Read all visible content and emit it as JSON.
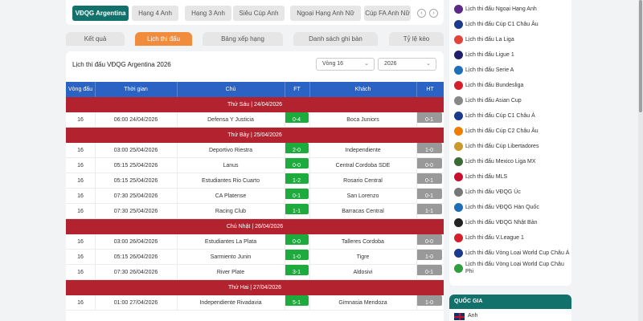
{
  "leagues": {
    "items": [
      "VĐQG Argentina",
      "Hạng 4 Anh",
      "Hạng 3 Anh",
      "Siêu Cúp Anh",
      "Ngoại Hạng Anh Nữ",
      "Cúp FA Anh Nữ"
    ],
    "prev": "‹",
    "next": "›"
  },
  "sections": [
    "Kết quả",
    "Lịch thi đấu",
    "Bảng xếp hạng",
    "Danh sách ghi bàn",
    "Tỷ lệ kèo"
  ],
  "schedule": {
    "title": "Lịch thi đấu VĐQG Argentina 2026",
    "round_select": "Vòng 16",
    "year_select": "2026",
    "headers": [
      "Vòng đấu",
      "Thời gian",
      "Chủ",
      "FT",
      "Khách",
      "HT"
    ],
    "groups": [
      {
        "date": "Thứ Sáu | 24/04/2026",
        "matches": [
          {
            "round": "16",
            "time": "06:00 24/04/2026",
            "home": "Defensa Y Justicia",
            "ft": "0-4",
            "away": "Boca Juniors",
            "ht": "0-1"
          }
        ]
      },
      {
        "date": "Thứ Bảy | 25/04/2026",
        "matches": [
          {
            "round": "16",
            "time": "03:00 25/04/2026",
            "home": "Deportivo Riestra",
            "ft": "2-0",
            "away": "Independiente",
            "ht": "1-0"
          },
          {
            "round": "16",
            "time": "05:15 25/04/2026",
            "home": "Lanus",
            "ft": "0-0",
            "away": "Central Cordoba SDE",
            "ht": "0-0"
          },
          {
            "round": "16",
            "time": "05:15 25/04/2026",
            "home": "Estudiantes Rio Cuarto",
            "ft": "1-2",
            "away": "Rosario Central",
            "ht": "0-1"
          },
          {
            "round": "16",
            "time": "07:30 25/04/2026",
            "home": "CA Platense",
            "ft": "0-1",
            "away": "San Lorenzo",
            "ht": "0-1"
          },
          {
            "round": "16",
            "time": "07:30 25/04/2026",
            "home": "Racing Club",
            "ft": "1-1",
            "away": "Barracas Central",
            "ht": "1-1"
          }
        ]
      },
      {
        "date": "Chủ Nhật | 26/04/2026",
        "matches": [
          {
            "round": "16",
            "time": "03:00 26/04/2026",
            "home": "Estudiantes La Plata",
            "ft": "0-0",
            "away": "Talleres Cordoba",
            "ht": "0-0"
          },
          {
            "round": "16",
            "time": "05:15 26/04/2026",
            "home": "Sarmiento Junin",
            "ft": "1-0",
            "away": "Tigre",
            "ht": "1-0"
          },
          {
            "round": "16",
            "time": "07:30 26/04/2026",
            "home": "River Plate",
            "ft": "3-1",
            "away": "Aldosivi",
            "ht": "0-1"
          }
        ]
      },
      {
        "date": "Thứ Hai | 27/04/2026",
        "matches": [
          {
            "round": "16",
            "time": "01:00 27/04/2026",
            "home": "Independiente Rivadavia",
            "ft": "5-1",
            "away": "Gimnasia Mendoza",
            "ht": "1-0"
          }
        ]
      }
    ]
  },
  "sidebar": {
    "items": [
      {
        "label": "Lịch thi đấu Ngoại Hạng Anh",
        "icon": "premier-league-icon",
        "color": "#5b2a86"
      },
      {
        "label": "Lịch thi đấu Cúp C1 Châu Âu",
        "icon": "ucl-icon",
        "color": "#1b3a8c"
      },
      {
        "label": "Lịch thi đấu La Liga",
        "icon": "laliga-icon",
        "color": "#e4433a"
      },
      {
        "label": "Lịch thi đấu Ligue 1",
        "icon": "ligue1-icon",
        "color": "#1f1f6b"
      },
      {
        "label": "Lịch thi đấu Serie A",
        "icon": "seriea-icon",
        "color": "#1e6fb8"
      },
      {
        "label": "Lịch thi đấu Bundesliga",
        "icon": "bundesliga-icon",
        "color": "#d3202a"
      },
      {
        "label": "Lịch thi đấu Asian Cup",
        "icon": "asian-cup-icon",
        "color": "#888888"
      },
      {
        "label": "Lịch thi đấu Cúp C1 Châu Á",
        "icon": "afc-cl-icon",
        "color": "#1b3a8c"
      },
      {
        "label": "Lịch thi đấu Cúp C2 Châu Âu",
        "icon": "uel-icon",
        "color": "#ef7d00"
      },
      {
        "label": "Lịch thi đấu Cúp Libertadores",
        "icon": "libertadores-icon",
        "color": "#c79a2b"
      },
      {
        "label": "Lịch thi đấu Mexico Liga MX",
        "icon": "ligamx-icon",
        "color": "#3a6b35"
      },
      {
        "label": "Lịch thi đấu MLS",
        "icon": "mls-icon",
        "color": "#c8102e"
      },
      {
        "label": "Lịch thi đấu VĐQG Úc",
        "icon": "a-league-icon",
        "color": "#777777"
      },
      {
        "label": "Lịch thi đấu VĐQG Hàn Quốc",
        "icon": "k-league-icon",
        "color": "#1e6fb8"
      },
      {
        "label": "Lịch thi đấu VĐQG Nhật Bản",
        "icon": "j-league-icon",
        "color": "#222222"
      },
      {
        "label": "Lịch thi đấu V.League 1",
        "icon": "vleague-icon",
        "color": "#d3202a"
      },
      {
        "label": "Lịch thi đấu Vòng Loại World Cup Châu Á",
        "icon": "wcq-asia-icon",
        "color": "#1b3a8c"
      },
      {
        "label": "Lịch thi đấu Vòng Loại World Cup Châu Phi",
        "icon": "wcq-africa-icon",
        "color": "#2e9e3e"
      }
    ]
  },
  "country": {
    "heading": "QUỐC GIA",
    "first": "Anh"
  },
  "colors": {
    "accent_green": "#12716b",
    "tab_orange": "#f08c3c",
    "header_blue": "#2a63c3",
    "date_red": "#b2232f",
    "ft_green": "#1eab3d",
    "ht_gray": "#999999"
  }
}
